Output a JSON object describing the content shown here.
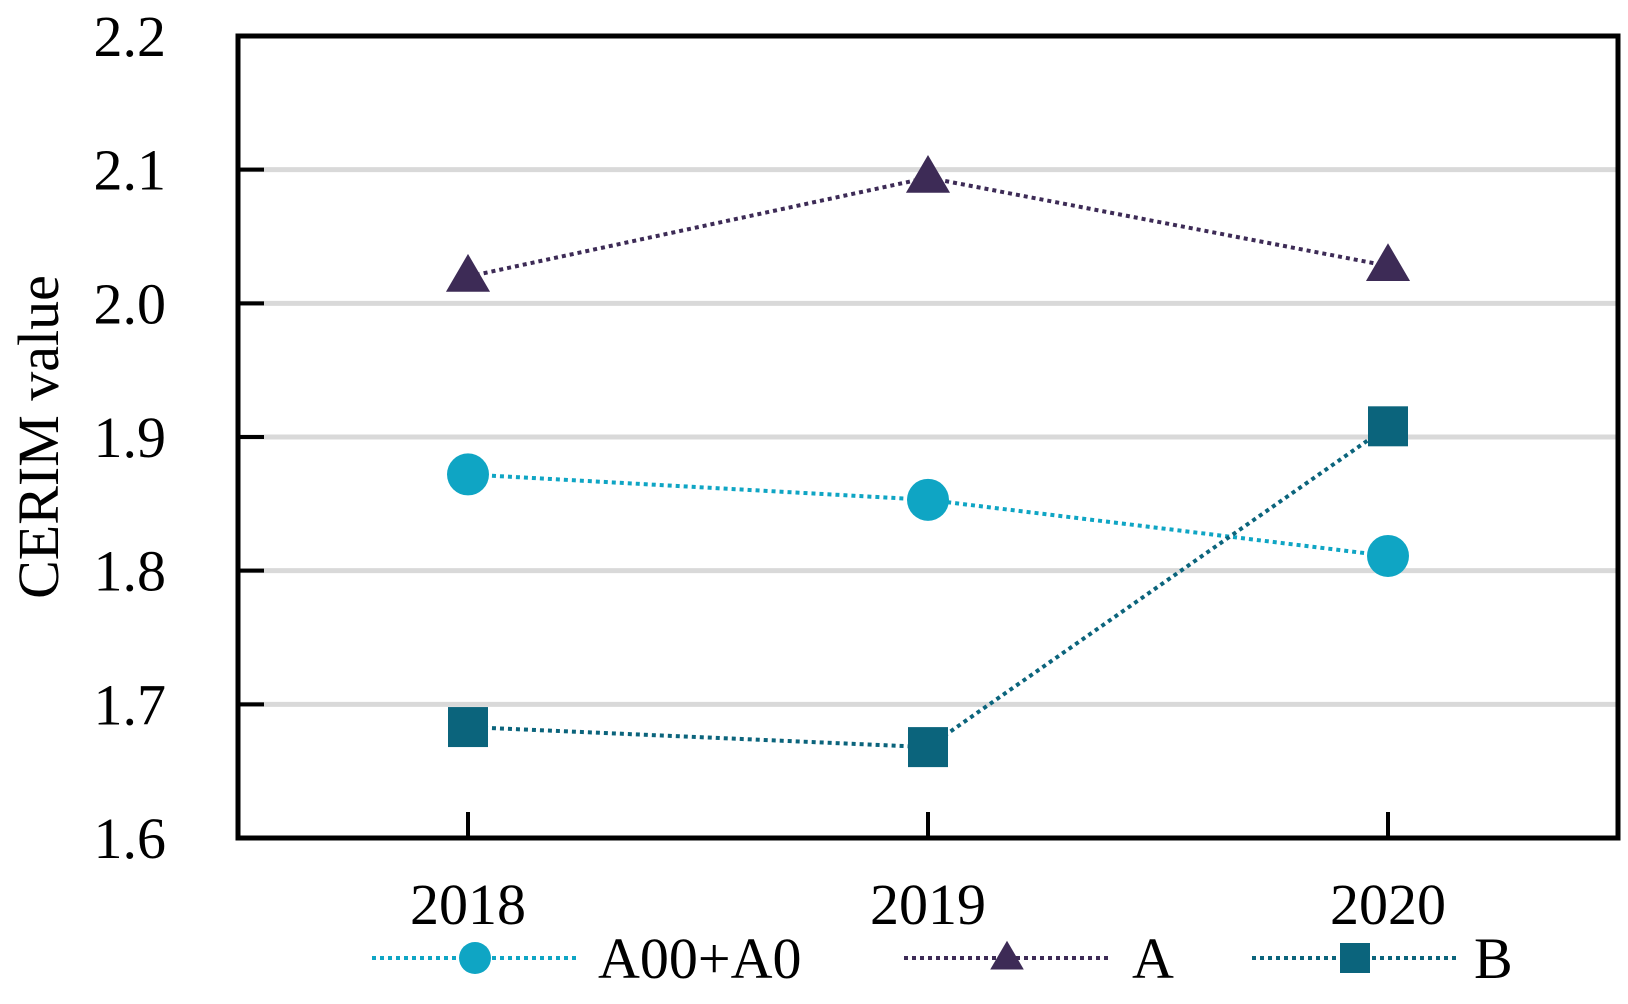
{
  "chart_data": {
    "type": "line",
    "title": "",
    "xlabel": "",
    "ylabel": "CERIM value",
    "categories": [
      "2018",
      "2019",
      "2020"
    ],
    "ylim": [
      1.6,
      2.2
    ],
    "yticks": [
      "1.6",
      "1.7",
      "1.8",
      "1.9",
      "2.0",
      "2.1",
      "2.2"
    ],
    "grid": "horizontal",
    "legend_position": "bottom",
    "series": [
      {
        "name": "A00+A0",
        "values": [
          1.872,
          1.853,
          1.811
        ],
        "color": "#0fa5c4",
        "marker": "circle",
        "line_style": "dotted"
      },
      {
        "name": "A",
        "values": [
          2.02,
          2.094,
          2.028
        ],
        "color": "#3d2b56",
        "marker": "triangle",
        "line_style": "dotted"
      },
      {
        "name": "B",
        "values": [
          1.683,
          1.668,
          1.908
        ],
        "color": "#0b647c",
        "marker": "square",
        "line_style": "dotted"
      }
    ]
  }
}
